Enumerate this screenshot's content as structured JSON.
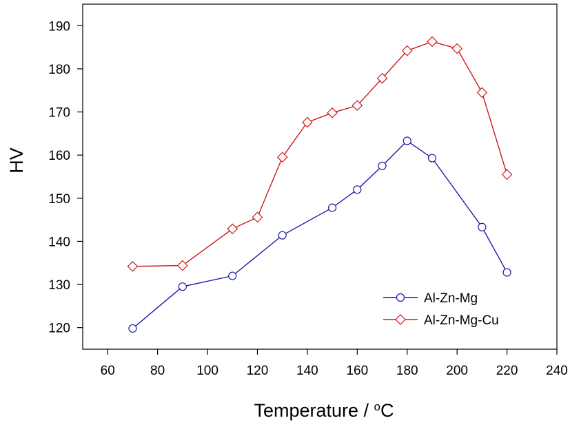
{
  "chart_data": {
    "type": "line",
    "xlabel": "Temperature / ",
    "xlabel_unit": "C",
    "xlabel_degree": "o",
    "ylabel": "HV",
    "xlim": [
      50,
      240
    ],
    "ylim": [
      115,
      195
    ],
    "xticks": [
      60,
      80,
      100,
      120,
      140,
      160,
      180,
      200,
      220,
      240
    ],
    "yticks": [
      120,
      130,
      140,
      150,
      160,
      170,
      180,
      190
    ],
    "grid": false,
    "legend_position": "bottom-right",
    "series": [
      {
        "name": "Al-Zn-Mg",
        "color": "#1a1aa6",
        "marker": "circle",
        "x": [
          70,
          90,
          110,
          130,
          150,
          160,
          170,
          180,
          190,
          210,
          220
        ],
        "y": [
          119.8,
          129.5,
          132.0,
          141.4,
          147.8,
          152.0,
          157.5,
          163.3,
          159.3,
          143.3,
          132.8
        ]
      },
      {
        "name": "Al-Zn-Mg-Cu",
        "color": "#cc1a1a",
        "marker": "diamond",
        "x": [
          70,
          90,
          110,
          120,
          130,
          140,
          150,
          160,
          170,
          180,
          190,
          200,
          210,
          220
        ],
        "y": [
          134.2,
          134.4,
          142.9,
          145.6,
          159.5,
          167.6,
          169.8,
          171.5,
          177.8,
          184.2,
          186.3,
          184.7,
          174.5,
          155.5
        ]
      }
    ]
  }
}
